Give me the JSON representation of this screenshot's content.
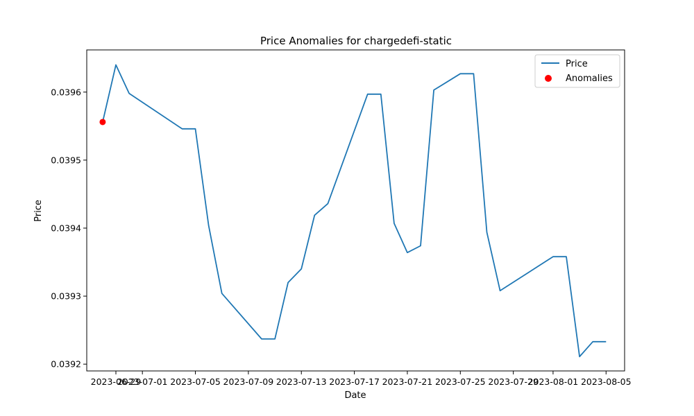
{
  "chart_data": {
    "type": "line",
    "title": "Price Anomalies for chargedefi-static",
    "xlabel": "Date",
    "ylabel": "Price",
    "x_ticks": [
      "2023-06-29",
      "2023-07-01",
      "2023-07-05",
      "2023-07-09",
      "2023-07-13",
      "2023-07-17",
      "2023-07-21",
      "2023-07-25",
      "2023-07-29",
      "2023-08-01",
      "2023-08-05"
    ],
    "y_ticks": [
      "0.0392",
      "0.0393",
      "0.0394",
      "0.0395",
      "0.0396"
    ],
    "ylim": [
      0.03919,
      0.039662
    ],
    "xlim": [
      "2023-06-26",
      "2023-08-06"
    ],
    "legend_position": "top-right",
    "grid": false,
    "series": [
      {
        "name": "Price",
        "color": "#1f77b4",
        "x": [
          "2023-06-28",
          "2023-06-29",
          "2023-06-30",
          "2023-07-04",
          "2023-07-05",
          "2023-07-06",
          "2023-07-07",
          "2023-07-10",
          "2023-07-11",
          "2023-07-12",
          "2023-07-13",
          "2023-07-14",
          "2023-07-15",
          "2023-07-18",
          "2023-07-19",
          "2023-07-20",
          "2023-07-21",
          "2023-07-22",
          "2023-07-23",
          "2023-07-25",
          "2023-07-26",
          "2023-07-27",
          "2023-07-28",
          "2023-08-01",
          "2023-08-02",
          "2023-08-03",
          "2023-08-04",
          "2023-08-05"
        ],
        "y": [
          0.039556,
          0.03964,
          0.039598,
          0.039546,
          0.039546,
          0.039404,
          0.039304,
          0.039237,
          0.039237,
          0.03932,
          0.03934,
          0.039419,
          0.039436,
          0.039597,
          0.039597,
          0.039407,
          0.039364,
          0.039374,
          0.039603,
          0.039627,
          0.039627,
          0.039394,
          0.039308,
          0.039358,
          0.039358,
          0.039211,
          0.039233,
          0.039233
        ]
      },
      {
        "name": "Anomalies",
        "type": "scatter",
        "color": "#ff0000",
        "x": [
          "2023-06-28"
        ],
        "y": [
          0.039556
        ]
      }
    ]
  }
}
